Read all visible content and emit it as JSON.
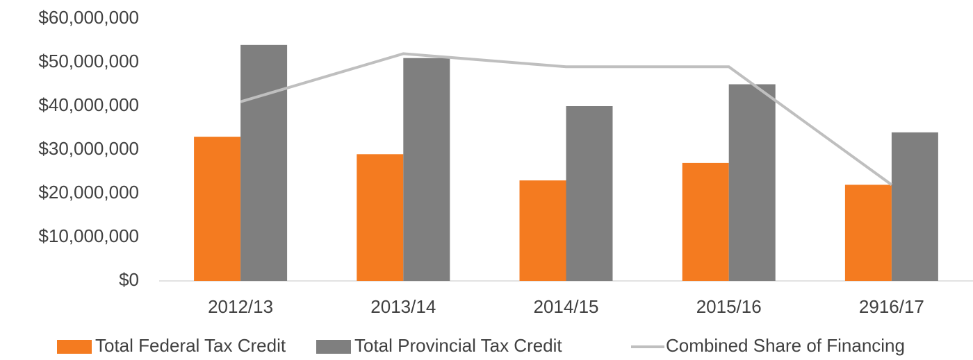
{
  "chart_data": {
    "type": "bar",
    "categories": [
      "2012/13",
      "2013/14",
      "2014/15",
      "2015/16",
      "2916/17"
    ],
    "series": [
      {
        "name": "Total Federal Tax Credit",
        "type": "bar",
        "color": "#f47b20",
        "values": [
          33000000,
          29000000,
          23000000,
          27000000,
          22000000
        ]
      },
      {
        "name": "Total Provincial Tax Credit",
        "type": "bar",
        "color": "#7f7f7f",
        "values": [
          54000000,
          51000000,
          40000000,
          45000000,
          34000000
        ]
      },
      {
        "name": "Combined Share of Financing",
        "type": "line",
        "color": "#bfbfbf",
        "values": [
          41000000,
          52000000,
          49000000,
          49000000,
          22000000
        ]
      }
    ],
    "ylim": [
      0,
      60000000
    ],
    "yticks": [
      {
        "value": 0,
        "label": "$0"
      },
      {
        "value": 10000000,
        "label": "$10,000,000"
      },
      {
        "value": 20000000,
        "label": "$20,000,000"
      },
      {
        "value": 30000000,
        "label": "$30,000,000"
      },
      {
        "value": 40000000,
        "label": "$40,000,000"
      },
      {
        "value": 50000000,
        "label": "$50,000,000"
      },
      {
        "value": 60000000,
        "label": "$60,000,000"
      }
    ],
    "legend": "bottom"
  }
}
